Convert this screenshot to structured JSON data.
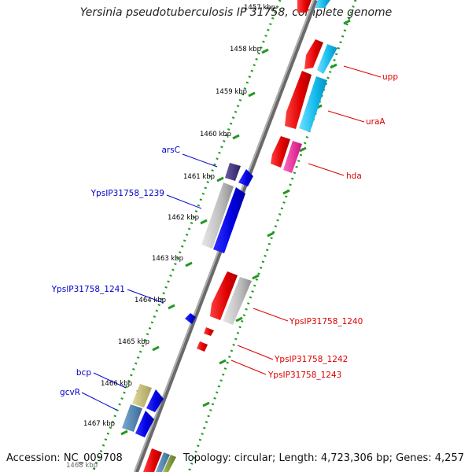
{
  "title": "Yersinia pseudotuberculosis IP 31758, complete genome",
  "footer": {
    "accession": "Accession: NC_009708",
    "summary": "Topology: circular; Length: 4,723,306 bp; Genes: 4,257"
  },
  "ticks": [
    "1457 kbp",
    "1458 kbp",
    "1459 kbp",
    "1460 kbp",
    "1461 kbp",
    "1462 kbp",
    "1463 kbp",
    "1464 kbp",
    "1465 kbp",
    "1466 kbp",
    "1467 kbp",
    "1468 kbp"
  ],
  "genes_forward": [
    {
      "name": "upp",
      "color": "#dd0000"
    },
    {
      "name": "uraA",
      "color": "#dd0000"
    },
    {
      "name": "hda",
      "color": "#dd0000"
    },
    {
      "name": "YpsIP31758_1240",
      "color": "#dd0000"
    },
    {
      "name": "YpsIP31758_1242",
      "color": "#dd0000"
    },
    {
      "name": "YpsIP31758_1243",
      "color": "#dd0000"
    }
  ],
  "genes_reverse": [
    {
      "name": "arsC",
      "color": "#0000cc"
    },
    {
      "name": "YpsIP31758_1239",
      "color": "#0000cc"
    },
    {
      "name": "YpsIP31758_1241",
      "color": "#0000cc"
    },
    {
      "name": "bcp",
      "color": "#0000cc"
    },
    {
      "name": "gcvR",
      "color": "#0000cc"
    }
  ],
  "colors": {
    "forward_cds": "#ee0000",
    "reverse_cds": "#0000ee",
    "cyan_feature": "#1ec8f0",
    "magenta_feature": "#ee2a9a",
    "pseudo_gray": "#b8b8b8",
    "dark_purple": "#4a3a8a",
    "tick_green": "#229922",
    "backbone": "#8a8a8a"
  }
}
